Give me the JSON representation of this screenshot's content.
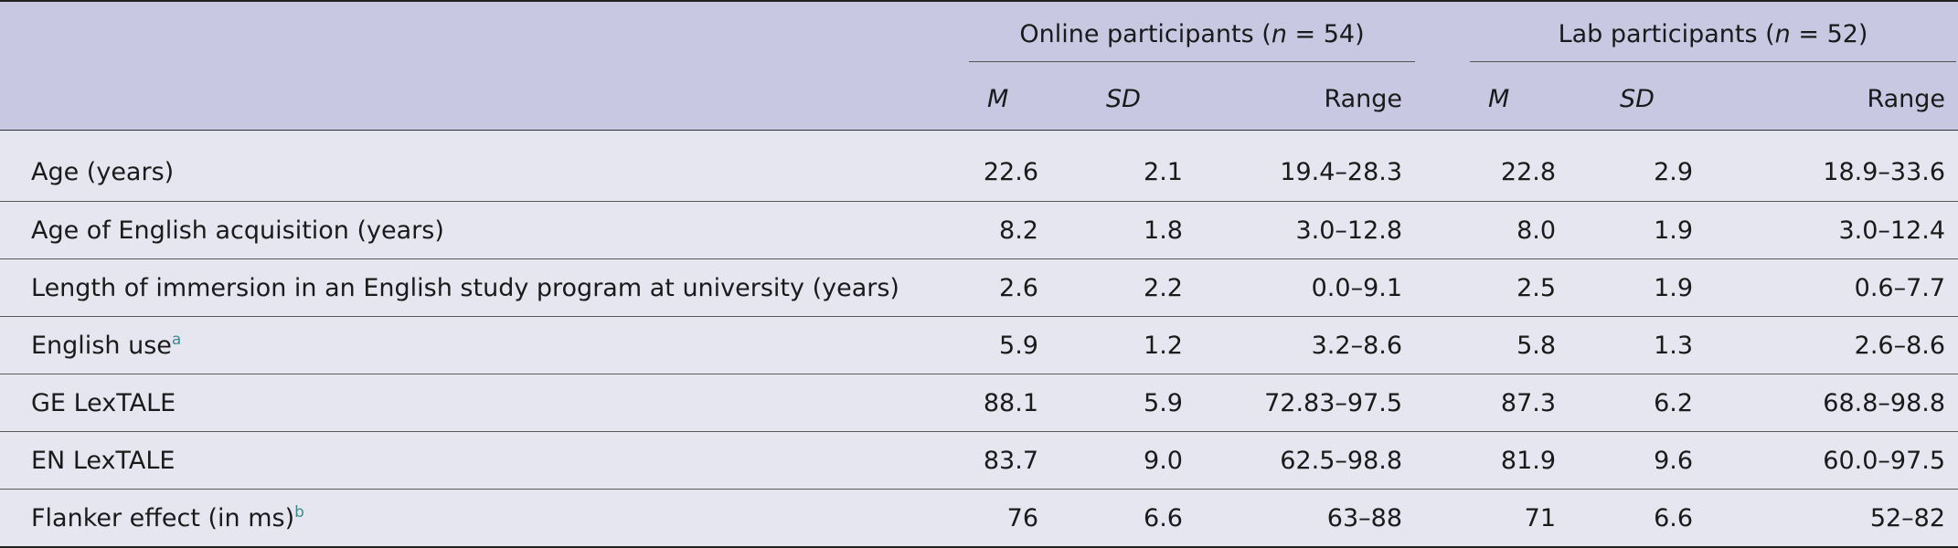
{
  "header": {
    "online_group": {
      "prefix": "Online participants (",
      "n_symbol": "n",
      "suffix": " = 54)"
    },
    "lab_group": {
      "prefix": "Lab participants (",
      "n_symbol": "n",
      "suffix": " = 52)"
    },
    "col_m": "M",
    "col_sd": "SD",
    "col_range": "Range"
  },
  "rows": [
    {
      "label": "Age (years)",
      "sup": "",
      "online": {
        "m": "22.6",
        "sd": "2.1",
        "range": "19.4–28.3"
      },
      "lab": {
        "m": "22.8",
        "sd": "2.9",
        "range": "18.9–33.6"
      }
    },
    {
      "label": "Age of English acquisition (years)",
      "sup": "",
      "online": {
        "m": "8.2",
        "sd": "1.8",
        "range": "3.0–12.8"
      },
      "lab": {
        "m": "8.0",
        "sd": "1.9",
        "range": "3.0–12.4"
      }
    },
    {
      "label": "Length of immersion in an English study program at university (years)",
      "sup": "",
      "online": {
        "m": "2.6",
        "sd": "2.2",
        "range": "0.0–9.1"
      },
      "lab": {
        "m": "2.5",
        "sd": "1.9",
        "range": "0.6–7.7"
      }
    },
    {
      "label": "English use",
      "sup": "a",
      "online": {
        "m": "5.9",
        "sd": "1.2",
        "range": "3.2–8.6"
      },
      "lab": {
        "m": "5.8",
        "sd": "1.3",
        "range": "2.6–8.6"
      }
    },
    {
      "label": "GE LexTALE",
      "sup": "",
      "online": {
        "m": "88.1",
        "sd": "5.9",
        "range": "72.83–97.5"
      },
      "lab": {
        "m": "87.3",
        "sd": "6.2",
        "range": "68.8–98.8"
      }
    },
    {
      "label": "EN LexTALE",
      "sup": "",
      "online": {
        "m": "83.7",
        "sd": "9.0",
        "range": "62.5–98.8"
      },
      "lab": {
        "m": "81.9",
        "sd": "9.6",
        "range": "60.0–97.5"
      }
    },
    {
      "label": "Flanker effect (in ms)",
      "sup": "b",
      "online": {
        "m": "76",
        "sd": "6.6",
        "range": "63–88"
      },
      "lab": {
        "m": "71",
        "sd": "6.6",
        "range": "52–82"
      }
    }
  ]
}
